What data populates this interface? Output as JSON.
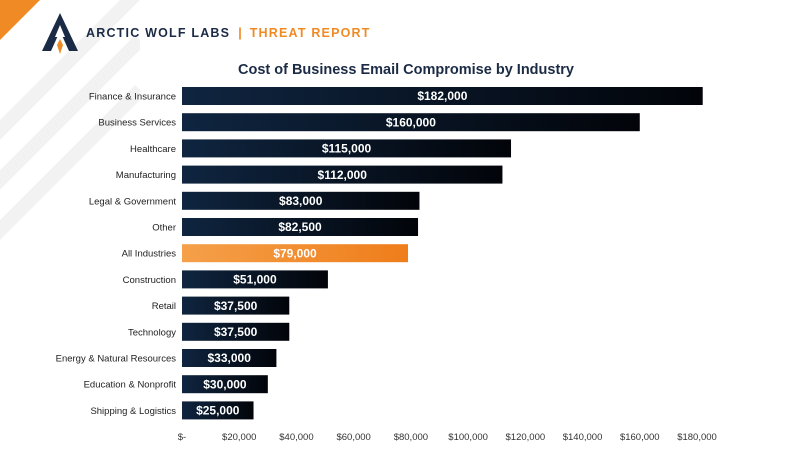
{
  "header": {
    "brand": "ARCTIC WOLF LABS",
    "separator": "|",
    "report": "THREAT REPORT"
  },
  "colors": {
    "navy": "#0f2540",
    "navy_dark": "#020409",
    "orange": "#f08a24",
    "highlight": "#f5a04a"
  },
  "chart_data": {
    "type": "bar",
    "orientation": "horizontal",
    "title": "Cost of Business Email Compromise by Industry",
    "categories": [
      "Finance & Insurance",
      "Business Services",
      "Healthcare",
      "Manufacturing",
      "Legal & Government",
      "Other",
      "All Industries",
      "Construction",
      "Retail",
      "Technology",
      "Energy & Natural Resources",
      "Education & Nonprofit",
      "Shipping & Logistics"
    ],
    "values": [
      182000,
      160000,
      115000,
      112000,
      83000,
      82500,
      79000,
      51000,
      37500,
      37500,
      33000,
      30000,
      25000
    ],
    "data_labels": [
      "$182,000",
      "$160,000",
      "$115,000",
      "$112,000",
      "$83,000",
      "$82,500",
      "$79,000",
      "$51,000",
      "$37,500",
      "$37,500",
      "$33,000",
      "$30,000",
      "$25,000"
    ],
    "highlight_category": "All Industries",
    "xlim": [
      0,
      180000
    ],
    "xticks": [
      0,
      20000,
      40000,
      60000,
      80000,
      100000,
      120000,
      140000,
      160000,
      180000
    ],
    "xtick_labels": [
      "$-",
      "$20,000",
      "$40,000",
      "$60,000",
      "$80,000",
      "$100,000",
      "$120,000",
      "$140,000",
      "$160,000",
      "$180,000"
    ],
    "grid": false,
    "legend": "none"
  }
}
